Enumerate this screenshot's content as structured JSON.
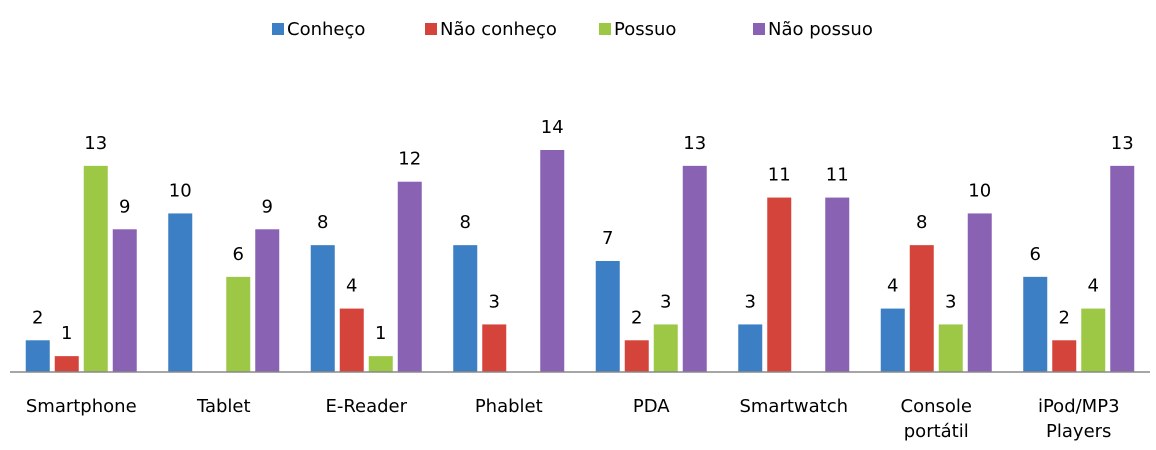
{
  "chart_data": {
    "type": "bar",
    "categories": [
      "Smartphone",
      "Tablet",
      "E-Reader",
      "Phablet",
      "PDA",
      "Smartwatch",
      "Console portátil",
      "iPod/MP3 Players"
    ],
    "series": [
      {
        "name": "Conheço",
        "color": "#3d7fc4",
        "values": [
          2,
          10,
          8,
          8,
          7,
          3,
          4,
          6
        ]
      },
      {
        "name": "Não conheço",
        "color": "#d5443a",
        "values": [
          1,
          null,
          4,
          3,
          2,
          11,
          8,
          2
        ]
      },
      {
        "name": "Possuo",
        "color": "#9cc846",
        "values": [
          13,
          6,
          1,
          null,
          3,
          null,
          3,
          4
        ]
      },
      {
        "name": "Não possuo",
        "color": "#8a62b4",
        "values": [
          9,
          9,
          12,
          14,
          13,
          11,
          10,
          13
        ]
      }
    ],
    "ylim": [
      0,
      14
    ],
    "legend": "top"
  }
}
